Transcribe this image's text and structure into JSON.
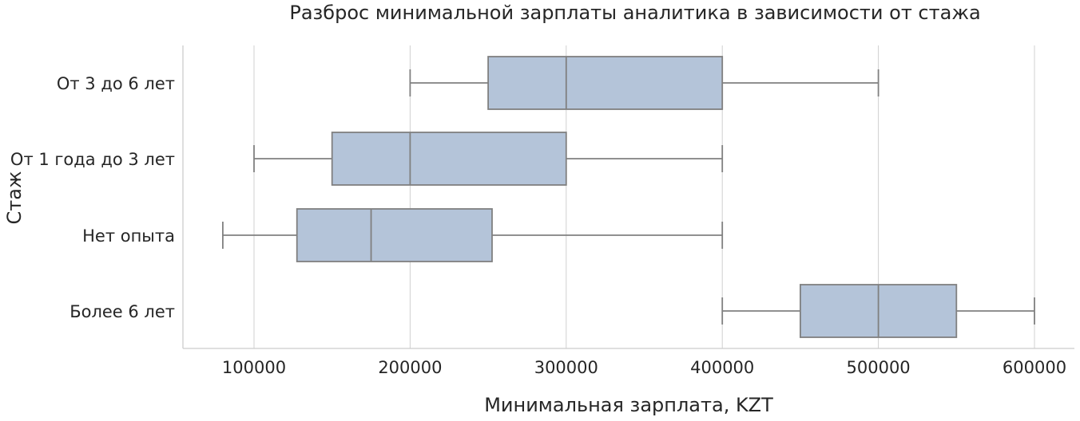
{
  "chart_data": {
    "type": "boxplot",
    "orientation": "horizontal",
    "title": "Разброс минимальной зарплаты аналитика в зависимости от стажа",
    "xlabel": "Минимальная зарплата, KZT",
    "ylabel": "Стаж",
    "xlim": [
      55000,
      625000
    ],
    "xticks": [
      100000,
      200000,
      300000,
      400000,
      500000,
      600000
    ],
    "xtick_labels": [
      "100000",
      "200000",
      "300000",
      "400000",
      "500000",
      "600000"
    ],
    "grid": "vertical",
    "categories": [
      "От 3 до 6 лет",
      "От 1 года до 3 лет",
      "Нет опыта",
      "Более 6 лет"
    ],
    "boxes": [
      {
        "category": "От 3 до 6 лет",
        "whisker_low": 200000,
        "q1": 250000,
        "median": 300000,
        "q3": 400000,
        "whisker_high": 500000
      },
      {
        "category": "От 1 года до 3 лет",
        "whisker_low": 100000,
        "q1": 150000,
        "median": 200000,
        "q3": 300000,
        "whisker_high": 400000
      },
      {
        "category": "Нет опыта",
        "whisker_low": 80000,
        "q1": 127500,
        "median": 175000,
        "q3": 252500,
        "whisker_high": 400000
      },
      {
        "category": "Более 6 лет",
        "whisker_low": 400000,
        "q1": 450000,
        "median": 500000,
        "q3": 550000,
        "whisker_high": 600000
      }
    ],
    "colors": {
      "box_fill": "#b4c4d9",
      "box_edge": "#808080",
      "grid": "#d0d0d0",
      "spine": "#cccccc",
      "text": "#262626"
    }
  }
}
